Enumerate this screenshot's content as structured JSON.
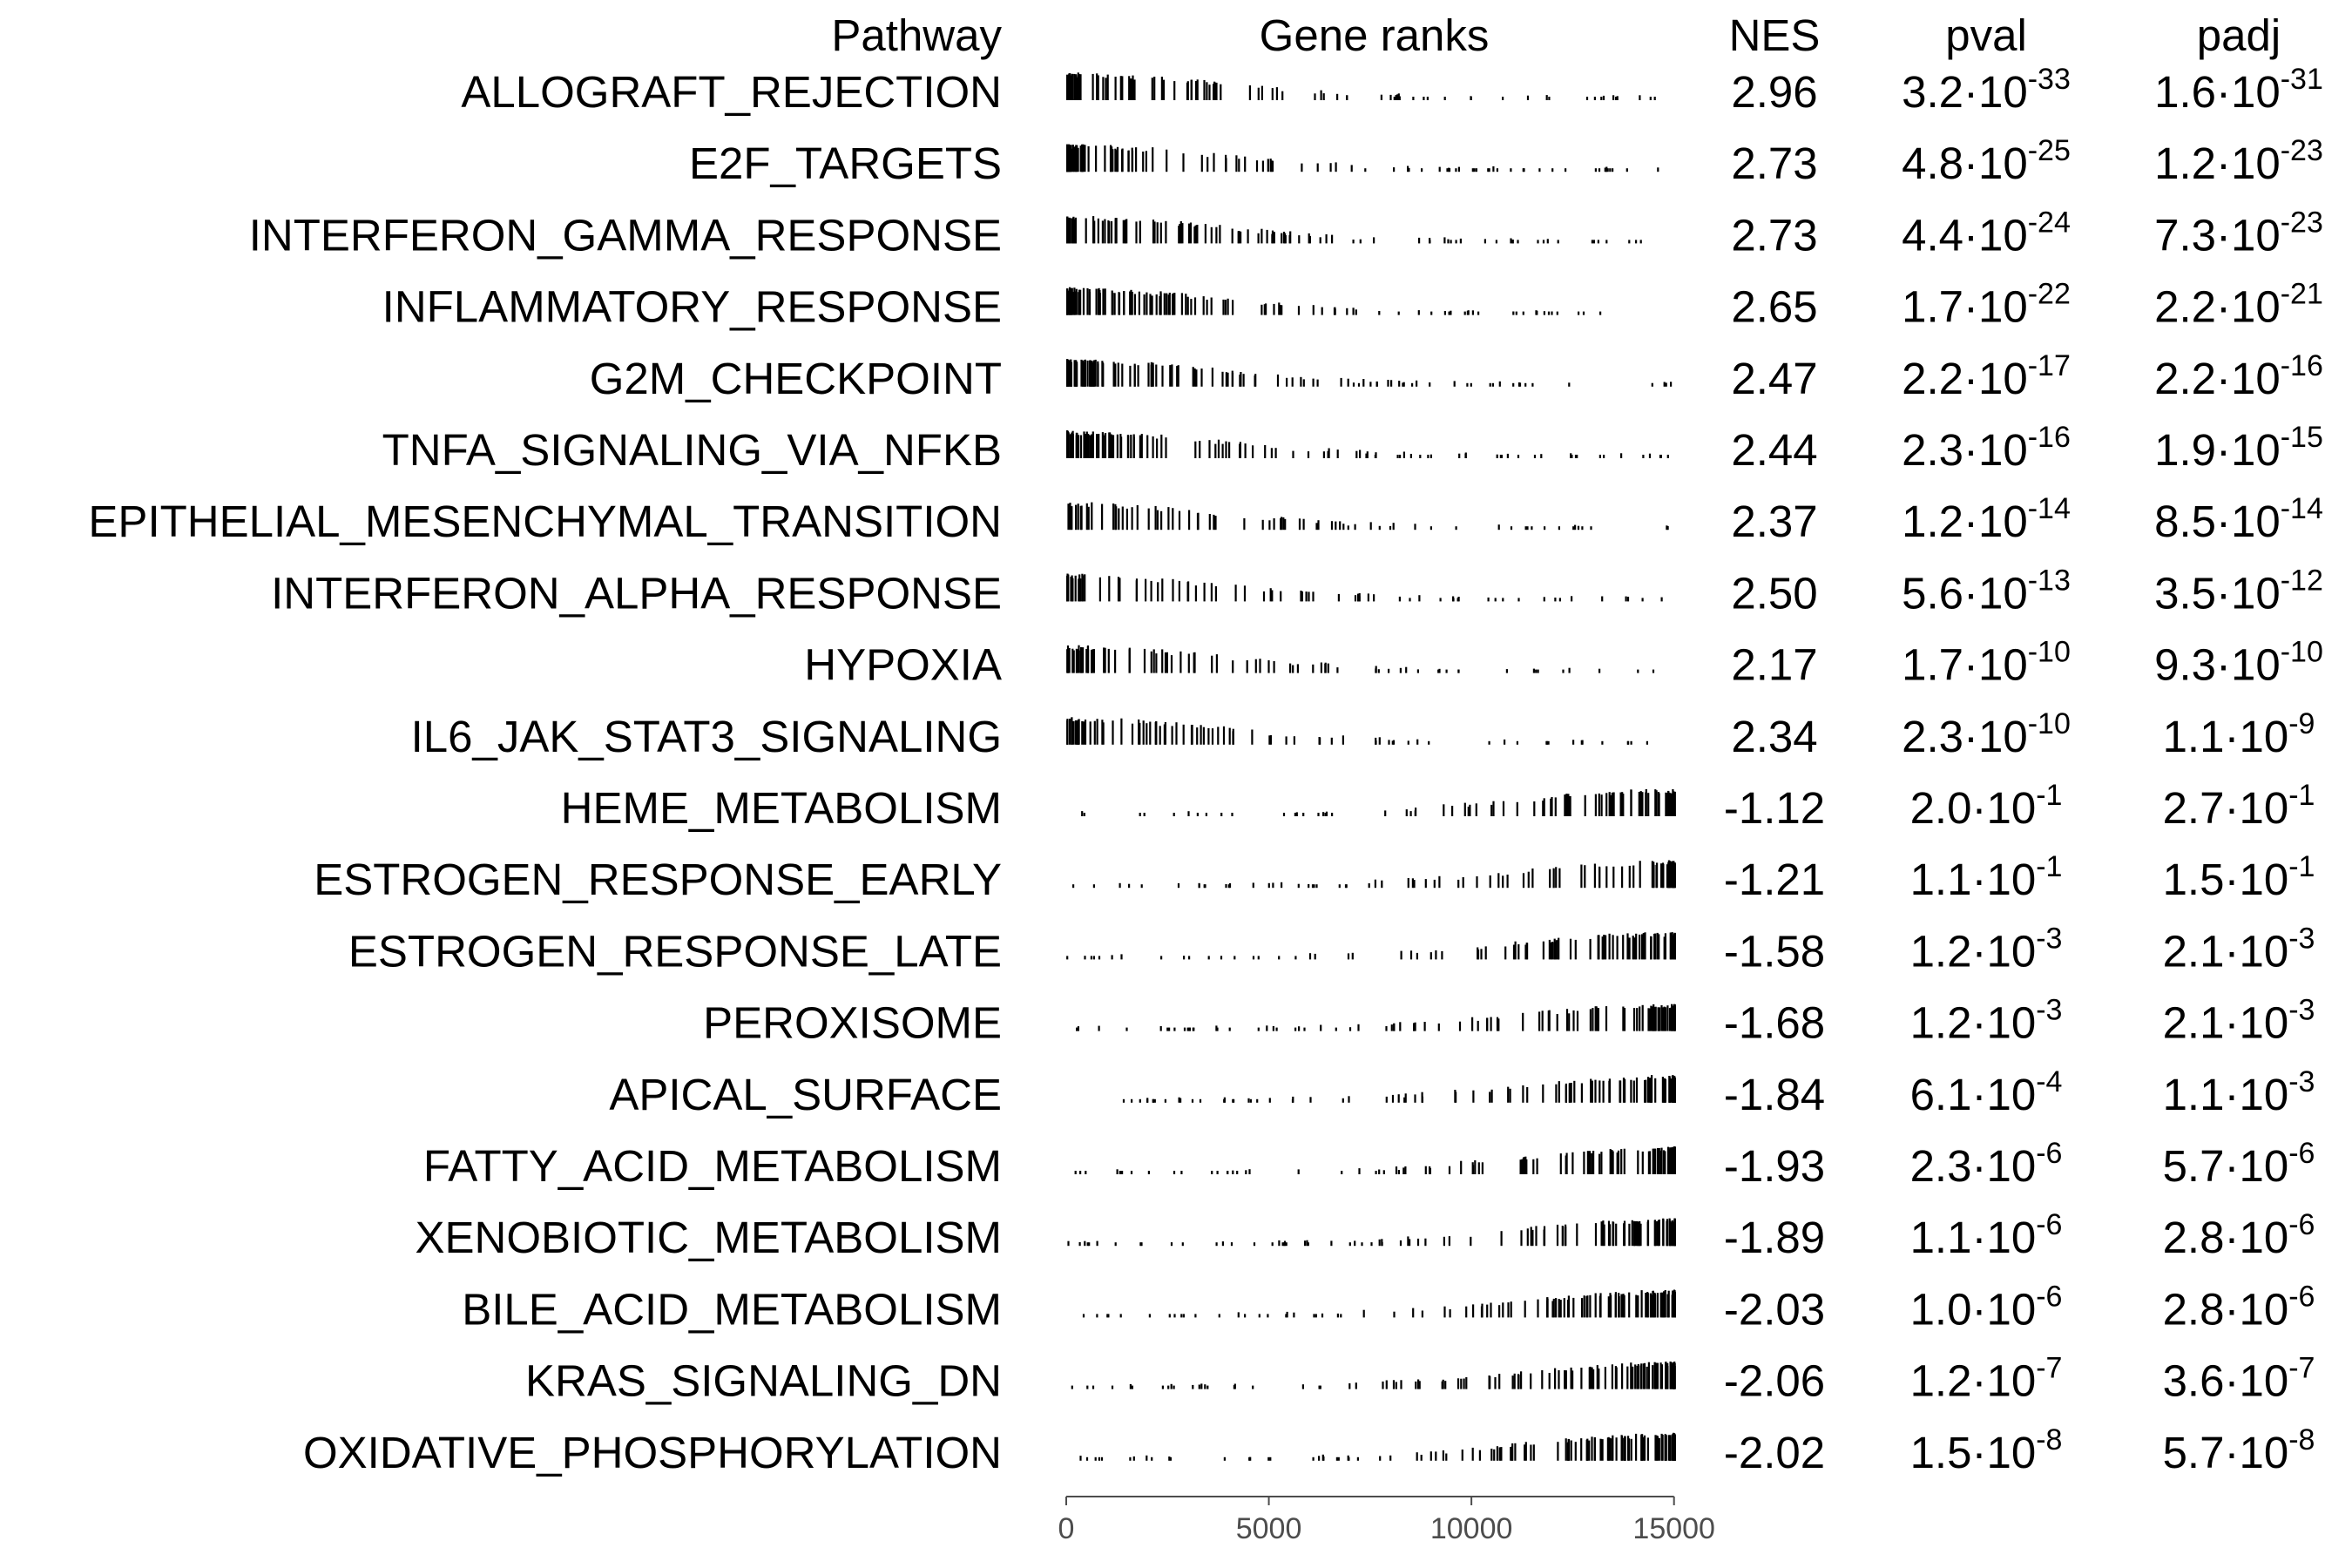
{
  "chart_data": {
    "type": "table",
    "columns": [
      "Pathway",
      "Gene ranks",
      "NES",
      "pval",
      "padj"
    ],
    "x_axis": {
      "ticks": [
        "0",
        "5000",
        "10000",
        "15000"
      ],
      "tick_values": [
        0,
        5000,
        10000,
        15000
      ],
      "range": [
        0,
        15200
      ]
    },
    "rows": [
      {
        "pathway": "ALLOGRAFT_REJECTION",
        "nes": "2.96",
        "pval_mant": "3.2",
        "pval_exp": "-33",
        "padj_mant": "1.6",
        "padj_exp": "-31"
      },
      {
        "pathway": "E2F_TARGETS",
        "nes": "2.73",
        "pval_mant": "4.8",
        "pval_exp": "-25",
        "padj_mant": "1.2",
        "padj_exp": "-23"
      },
      {
        "pathway": "INTERFERON_GAMMA_RESPONSE",
        "nes": "2.73",
        "pval_mant": "4.4",
        "pval_exp": "-24",
        "padj_mant": "7.3",
        "padj_exp": "-23"
      },
      {
        "pathway": "INFLAMMATORY_RESPONSE",
        "nes": "2.65",
        "pval_mant": "1.7",
        "pval_exp": "-22",
        "padj_mant": "2.2",
        "padj_exp": "-21"
      },
      {
        "pathway": "G2M_CHECKPOINT",
        "nes": "2.47",
        "pval_mant": "2.2",
        "pval_exp": "-17",
        "padj_mant": "2.2",
        "padj_exp": "-16"
      },
      {
        "pathway": "TNFA_SIGNALING_VIA_NFKB",
        "nes": "2.44",
        "pval_mant": "2.3",
        "pval_exp": "-16",
        "padj_mant": "1.9",
        "padj_exp": "-15"
      },
      {
        "pathway": "EPITHELIAL_MESENCHYMAL_TRANSITION",
        "nes": "2.37",
        "pval_mant": "1.2",
        "pval_exp": "-14",
        "padj_mant": "8.5",
        "padj_exp": "-14"
      },
      {
        "pathway": "INTERFERON_ALPHA_RESPONSE",
        "nes": "2.50",
        "pval_mant": "5.6",
        "pval_exp": "-13",
        "padj_mant": "3.5",
        "padj_exp": "-12"
      },
      {
        "pathway": "HYPOXIA",
        "nes": "2.17",
        "pval_mant": "1.7",
        "pval_exp": "-10",
        "padj_mant": "9.3",
        "padj_exp": "-10"
      },
      {
        "pathway": "IL6_JAK_STAT3_SIGNALING",
        "nes": "2.34",
        "pval_mant": "2.3",
        "pval_exp": "-10",
        "padj_mant": "1.1",
        "padj_exp": "-9"
      },
      {
        "pathway": "HEME_METABOLISM",
        "nes": "-1.12",
        "pval_mant": "2.0",
        "pval_exp": "-1",
        "padj_mant": "2.7",
        "padj_exp": "-1"
      },
      {
        "pathway": "ESTROGEN_RESPONSE_EARLY",
        "nes": "-1.21",
        "pval_mant": "1.1",
        "pval_exp": "-1",
        "padj_mant": "1.5",
        "padj_exp": "-1"
      },
      {
        "pathway": "ESTROGEN_RESPONSE_LATE",
        "nes": "-1.58",
        "pval_mant": "1.2",
        "pval_exp": "-3",
        "padj_mant": "2.1",
        "padj_exp": "-3"
      },
      {
        "pathway": "PEROXISOME",
        "nes": "-1.68",
        "pval_mant": "1.2",
        "pval_exp": "-3",
        "padj_mant": "2.1",
        "padj_exp": "-3"
      },
      {
        "pathway": "APICAL_SURFACE",
        "nes": "-1.84",
        "pval_mant": "6.1",
        "pval_exp": "-4",
        "padj_mant": "1.1",
        "padj_exp": "-3"
      },
      {
        "pathway": "FATTY_ACID_METABOLISM",
        "nes": "-1.93",
        "pval_mant": "2.3",
        "pval_exp": "-6",
        "padj_mant": "5.7",
        "padj_exp": "-6"
      },
      {
        "pathway": "XENOBIOTIC_METABOLISM",
        "nes": "-1.89",
        "pval_mant": "1.1",
        "pval_exp": "-6",
        "padj_mant": "2.8",
        "padj_exp": "-6"
      },
      {
        "pathway": "BILE_ACID_METABOLISM",
        "nes": "-2.03",
        "pval_mant": "1.0",
        "pval_exp": "-6",
        "padj_mant": "2.8",
        "padj_exp": "-6"
      },
      {
        "pathway": "KRAS_SIGNALING_DN",
        "nes": "-2.06",
        "pval_mant": "1.2",
        "pval_exp": "-7",
        "padj_mant": "3.6",
        "padj_exp": "-7"
      },
      {
        "pathway": "OXIDATIVE_PHOSPHORYLATION",
        "nes": "-2.02",
        "pval_mant": "1.5",
        "pval_exp": "-8",
        "padj_mant": "5.7",
        "padj_exp": "-8"
      }
    ]
  }
}
